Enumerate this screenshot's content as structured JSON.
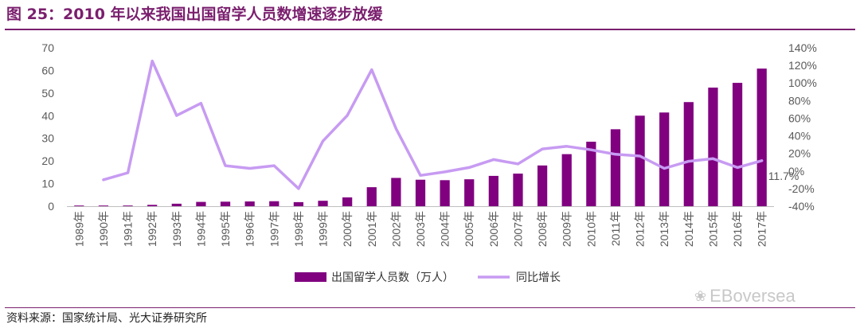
{
  "header": {
    "title": "图 25：2010 年以来我国出国留学人员数增速逐步放缓"
  },
  "footer": {
    "source": "资料来源：国家统计局、光大证券研究所"
  },
  "watermark": {
    "text": "EBoversea",
    "icon": "wechat-icon"
  },
  "colors": {
    "title": "#7a1f6e",
    "bar": "#800080",
    "line": "#c79bf2",
    "axis_text": "#595959",
    "rule": "#7a1f6e"
  },
  "chart_data": {
    "type": "bar",
    "title": "",
    "categories": [
      "1989年",
      "1990年",
      "1991年",
      "1992年",
      "1993年",
      "1994年",
      "1995年",
      "1996年",
      "1997年",
      "1998年",
      "1999年",
      "2000年",
      "2001年",
      "2002年",
      "2003年",
      "2004年",
      "2005年",
      "2006年",
      "2007年",
      "2008年",
      "2009年",
      "2010年",
      "2011年",
      "2012年",
      "2013年",
      "2014年",
      "2015年",
      "2016年",
      "2017年"
    ],
    "series": [
      {
        "name": "出国留学人员数（万人）",
        "type": "bar",
        "axis": "left",
        "values": [
          0.3,
          0.3,
          0.3,
          0.6,
          1.1,
          1.9,
          2.0,
          2.1,
          2.2,
          1.8,
          2.4,
          3.9,
          8.4,
          12.5,
          11.7,
          11.5,
          11.9,
          13.4,
          14.4,
          18.0,
          23.0,
          28.5,
          34.0,
          40.0,
          41.4,
          46.0,
          52.4,
          54.5,
          60.8
        ]
      },
      {
        "name": "同比增长",
        "type": "line",
        "axis": "right",
        "values": [
          null,
          -10,
          -2,
          125,
          63,
          77,
          6,
          3,
          6,
          -20,
          34,
          63,
          115,
          48,
          -5,
          -1,
          4,
          13,
          8,
          25,
          28,
          24,
          19,
          17,
          3,
          11,
          14,
          4,
          11.7
        ]
      }
    ],
    "y_left": {
      "ylim": [
        0,
        70
      ],
      "ticks": [
        "0",
        "10",
        "20",
        "30",
        "40",
        "50",
        "60",
        "70"
      ]
    },
    "y_right": {
      "ylim": [
        -40,
        140
      ],
      "ticks": [
        "-40%",
        "-20%",
        "0%",
        "20%",
        "40%",
        "60%",
        "80%",
        "100%",
        "120%",
        "140%"
      ]
    },
    "annotations": [
      {
        "text": "11.7%",
        "series": "同比增长",
        "index": 28
      }
    ],
    "legend": {
      "position": "bottom-center"
    },
    "grid": false
  }
}
